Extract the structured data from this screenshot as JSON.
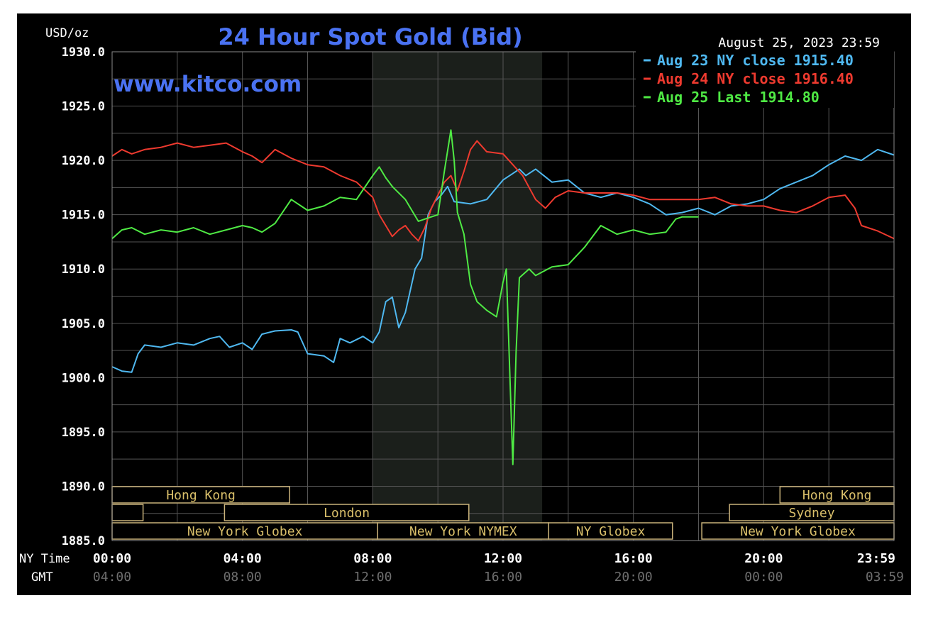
{
  "chart_data": {
    "type": "line",
    "title": "24 Hour Spot Gold (Bid)",
    "watermark": "www.kitco.com",
    "timestamp": "August 25, 2023 23:59",
    "ylabel": "USD/oz",
    "ylim": [
      1885.0,
      1930.0
    ],
    "yticks": [
      "1930.0",
      "1925.0",
      "1920.0",
      "1915.0",
      "1910.0",
      "1905.0",
      "1900.0",
      "1895.0",
      "1890.0",
      "1885.0"
    ],
    "xlim": [
      0,
      24
    ],
    "xaxis": {
      "ny_label": "NY Time",
      "gmt_label": "GMT",
      "ny_ticks": [
        "00:00",
        "04:00",
        "08:00",
        "12:00",
        "16:00",
        "20:00",
        "23:59"
      ],
      "gmt_ticks": [
        "04:00",
        "08:00",
        "12:00",
        "16:00",
        "20:00",
        "00:00",
        "03:59"
      ]
    },
    "grid": true,
    "legend_position": "top-right",
    "shaded_session": {
      "from": 8.0,
      "to": 13.2,
      "color": "#1b1f1b"
    },
    "sessions": [
      {
        "label": "Hong Kong",
        "row": 0,
        "from": 0.0,
        "to": 5.45
      },
      {
        "label": "",
        "row": 1,
        "from": 0.0,
        "to": 0.95
      },
      {
        "label": "London",
        "row": 1,
        "from": 3.45,
        "to": 10.95
      },
      {
        "label": "New York Globex",
        "row": 2,
        "from": 0.0,
        "to": 8.15
      },
      {
        "label": "New York NYMEX",
        "row": 2,
        "from": 8.15,
        "to": 13.4
      },
      {
        "label": "NY Globex",
        "row": 2,
        "from": 13.4,
        "to": 17.2
      },
      {
        "label": "Hong Kong",
        "row": 0,
        "from": 20.5,
        "to": 24.0
      },
      {
        "label": "Sydney",
        "row": 1,
        "from": 18.95,
        "to": 24.0
      },
      {
        "label": "New York Globex",
        "row": 2,
        "from": 18.1,
        "to": 24.0
      }
    ],
    "series": [
      {
        "name": "Aug 23 NY close 1915.40",
        "color": "#4fb8f0",
        "points": [
          [
            0,
            1901.0
          ],
          [
            0.3,
            1900.6
          ],
          [
            0.6,
            1900.5
          ],
          [
            0.8,
            1902.2
          ],
          [
            1.0,
            1903.0
          ],
          [
            1.5,
            1902.8
          ],
          [
            2.0,
            1903.2
          ],
          [
            2.5,
            1903.0
          ],
          [
            3.0,
            1903.6
          ],
          [
            3.3,
            1903.8
          ],
          [
            3.6,
            1902.8
          ],
          [
            4.0,
            1903.2
          ],
          [
            4.3,
            1902.6
          ],
          [
            4.6,
            1904.0
          ],
          [
            5.0,
            1904.3
          ],
          [
            5.5,
            1904.4
          ],
          [
            5.7,
            1904.2
          ],
          [
            6.0,
            1902.2
          ],
          [
            6.5,
            1902.0
          ],
          [
            6.8,
            1901.4
          ],
          [
            7.0,
            1903.6
          ],
          [
            7.3,
            1903.2
          ],
          [
            7.7,
            1903.8
          ],
          [
            8.0,
            1903.2
          ],
          [
            8.2,
            1904.2
          ],
          [
            8.4,
            1907.0
          ],
          [
            8.6,
            1907.4
          ],
          [
            8.8,
            1904.6
          ],
          [
            9.0,
            1906.0
          ],
          [
            9.3,
            1910.0
          ],
          [
            9.5,
            1911.0
          ],
          [
            9.7,
            1915.0
          ],
          [
            9.9,
            1916.2
          ],
          [
            10.1,
            1916.8
          ],
          [
            10.3,
            1917.6
          ],
          [
            10.5,
            1916.2
          ],
          [
            11.0,
            1916.0
          ],
          [
            11.5,
            1916.4
          ],
          [
            12.0,
            1918.2
          ],
          [
            12.5,
            1919.2
          ],
          [
            12.7,
            1918.6
          ],
          [
            13.0,
            1919.2
          ],
          [
            13.5,
            1918.0
          ],
          [
            14.0,
            1918.2
          ],
          [
            14.5,
            1917.0
          ],
          [
            15.0,
            1916.6
          ],
          [
            15.5,
            1917.0
          ],
          [
            16.0,
            1916.6
          ],
          [
            16.5,
            1916.0
          ],
          [
            17.0,
            1915.0
          ],
          [
            17.5,
            1915.2
          ],
          [
            18.0,
            1915.6
          ],
          [
            18.5,
            1915.0
          ],
          [
            19.0,
            1915.8
          ],
          [
            19.5,
            1916.0
          ],
          [
            20.0,
            1916.4
          ],
          [
            20.5,
            1917.4
          ],
          [
            21.0,
            1918.0
          ],
          [
            21.5,
            1918.6
          ],
          [
            22.0,
            1919.6
          ],
          [
            22.5,
            1920.4
          ],
          [
            23.0,
            1920.0
          ],
          [
            23.5,
            1921.0
          ],
          [
            24.0,
            1920.5
          ]
        ]
      },
      {
        "name": "Aug 24 NY close 1916.40",
        "color": "#ee3a2f",
        "points": [
          [
            0,
            1920.4
          ],
          [
            0.3,
            1921.0
          ],
          [
            0.6,
            1920.6
          ],
          [
            1.0,
            1921.0
          ],
          [
            1.5,
            1921.2
          ],
          [
            2.0,
            1921.6
          ],
          [
            2.5,
            1921.2
          ],
          [
            3.0,
            1921.4
          ],
          [
            3.5,
            1921.6
          ],
          [
            4.0,
            1920.8
          ],
          [
            4.3,
            1920.4
          ],
          [
            4.6,
            1919.8
          ],
          [
            5.0,
            1921.0
          ],
          [
            5.5,
            1920.2
          ],
          [
            6.0,
            1919.6
          ],
          [
            6.5,
            1919.4
          ],
          [
            7.0,
            1918.6
          ],
          [
            7.5,
            1918.0
          ],
          [
            8.0,
            1916.6
          ],
          [
            8.2,
            1915.0
          ],
          [
            8.4,
            1914.0
          ],
          [
            8.6,
            1913.0
          ],
          [
            8.8,
            1913.6
          ],
          [
            9.0,
            1914.0
          ],
          [
            9.2,
            1913.2
          ],
          [
            9.4,
            1912.6
          ],
          [
            9.6,
            1913.8
          ],
          [
            9.8,
            1915.6
          ],
          [
            10.0,
            1916.8
          ],
          [
            10.2,
            1918.0
          ],
          [
            10.4,
            1918.6
          ],
          [
            10.6,
            1917.2
          ],
          [
            10.8,
            1919.0
          ],
          [
            11.0,
            1921.0
          ],
          [
            11.2,
            1921.8
          ],
          [
            11.5,
            1920.8
          ],
          [
            12.0,
            1920.6
          ],
          [
            12.3,
            1919.6
          ],
          [
            12.6,
            1918.6
          ],
          [
            13.0,
            1916.4
          ],
          [
            13.3,
            1915.6
          ],
          [
            13.6,
            1916.6
          ],
          [
            14.0,
            1917.2
          ],
          [
            14.5,
            1917.0
          ],
          [
            15.0,
            1917.0
          ],
          [
            15.5,
            1917.0
          ],
          [
            16.0,
            1916.8
          ],
          [
            16.5,
            1916.4
          ],
          [
            17.0,
            1916.4
          ],
          [
            17.5,
            1916.4
          ],
          [
            18.0,
            1916.4
          ],
          [
            18.5,
            1916.6
          ],
          [
            19.0,
            1916.0
          ],
          [
            19.5,
            1915.8
          ],
          [
            20.0,
            1915.8
          ],
          [
            20.5,
            1915.4
          ],
          [
            21.0,
            1915.2
          ],
          [
            21.5,
            1915.8
          ],
          [
            22.0,
            1916.6
          ],
          [
            22.5,
            1916.8
          ],
          [
            22.8,
            1915.6
          ],
          [
            23.0,
            1914.0
          ],
          [
            23.5,
            1913.5
          ],
          [
            24.0,
            1912.8
          ]
        ]
      },
      {
        "name": "Aug 25 Last 1914.80",
        "color": "#4fea44",
        "points": [
          [
            0,
            1912.8
          ],
          [
            0.3,
            1913.6
          ],
          [
            0.6,
            1913.8
          ],
          [
            1.0,
            1913.2
          ],
          [
            1.5,
            1913.6
          ],
          [
            2.0,
            1913.4
          ],
          [
            2.5,
            1913.8
          ],
          [
            3.0,
            1913.2
          ],
          [
            3.5,
            1913.6
          ],
          [
            4.0,
            1914.0
          ],
          [
            4.3,
            1913.8
          ],
          [
            4.6,
            1913.4
          ],
          [
            5.0,
            1914.2
          ],
          [
            5.5,
            1916.4
          ],
          [
            6.0,
            1915.4
          ],
          [
            6.5,
            1915.8
          ],
          [
            7.0,
            1916.6
          ],
          [
            7.5,
            1916.4
          ],
          [
            8.0,
            1918.6
          ],
          [
            8.2,
            1919.4
          ],
          [
            8.4,
            1918.4
          ],
          [
            8.6,
            1917.6
          ],
          [
            9.0,
            1916.4
          ],
          [
            9.4,
            1914.4
          ],
          [
            9.8,
            1914.8
          ],
          [
            10.0,
            1915.0
          ],
          [
            10.2,
            1919.0
          ],
          [
            10.4,
            1922.8
          ],
          [
            10.5,
            1920.0
          ],
          [
            10.6,
            1915.2
          ],
          [
            10.8,
            1913.2
          ],
          [
            11.0,
            1908.6
          ],
          [
            11.2,
            1907.0
          ],
          [
            11.5,
            1906.2
          ],
          [
            11.8,
            1905.6
          ],
          [
            12.0,
            1908.8
          ],
          [
            12.1,
            1910.0
          ],
          [
            12.2,
            1901.0
          ],
          [
            12.3,
            1892.0
          ],
          [
            12.4,
            1902.4
          ],
          [
            12.5,
            1909.2
          ],
          [
            12.8,
            1910.0
          ],
          [
            13.0,
            1909.4
          ],
          [
            13.5,
            1910.2
          ],
          [
            14.0,
            1910.4
          ],
          [
            14.5,
            1912.0
          ],
          [
            15.0,
            1914.0
          ],
          [
            15.5,
            1913.2
          ],
          [
            16.0,
            1913.6
          ],
          [
            16.5,
            1913.2
          ],
          [
            17.0,
            1913.4
          ],
          [
            17.3,
            1914.6
          ],
          [
            17.5,
            1914.8
          ],
          [
            18.0,
            1914.8
          ]
        ]
      }
    ]
  }
}
